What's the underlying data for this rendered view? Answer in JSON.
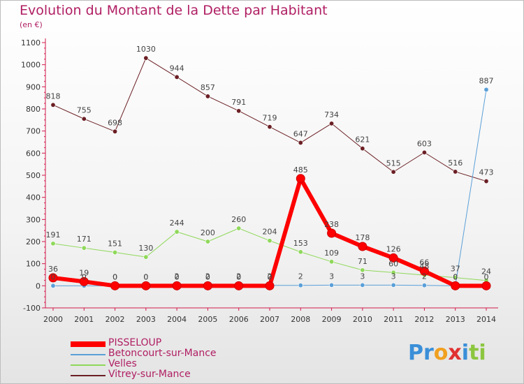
{
  "chart_data": {
    "type": "line",
    "title": "Evolution du Montant de la Dette par Habitant",
    "unit_label": "(en €)",
    "xlabel": "",
    "ylabel": "",
    "ylim": [
      -100,
      1100
    ],
    "yticks": [
      -100,
      0,
      100,
      200,
      300,
      400,
      500,
      600,
      700,
      800,
      900,
      1000,
      1100
    ],
    "x": [
      "2000",
      "2001",
      "2002",
      "2003",
      "2004",
      "2005",
      "2006",
      "2007",
      "2008",
      "2009",
      "2010",
      "2011",
      "2012",
      "2013",
      "2014"
    ],
    "grid": false,
    "legend_position": "bottom-left",
    "series": [
      {
        "name": "Vitrey-sur-Mance",
        "color": "#6b1f24",
        "values": [
          818,
          755,
          698,
          1030,
          944,
          857,
          791,
          719,
          647,
          734,
          621,
          515,
          603,
          516,
          473
        ]
      },
      {
        "name": "Velles",
        "color": "#8fd85a",
        "values": [
          191,
          171,
          151,
          130,
          244,
          200,
          260,
          204,
          153,
          109,
          71,
          60,
          48,
          37,
          24
        ]
      },
      {
        "name": "Betoncourt-sur-Mance",
        "color": "#5a9fd8",
        "values": [
          0,
          0,
          0,
          0,
          2,
          2,
          2,
          2,
          2,
          3,
          3,
          3,
          2,
          0,
          887
        ]
      },
      {
        "name": "PISSELOUP",
        "color": "#ff0000",
        "values": [
          36,
          19,
          0,
          0,
          0,
          0,
          0,
          0,
          485,
          238,
          178,
          126,
          66,
          0,
          0
        ]
      }
    ],
    "legend": [
      "PISSELOUP",
      "Betoncourt-sur-Mance",
      "Velles",
      "Vitrey-sur-Mance"
    ]
  },
  "logo": {
    "text": "Proxiti",
    "letters": [
      "P",
      "r",
      "o",
      "x",
      "i",
      "t",
      "i"
    ],
    "colors": [
      "#3a8fd8",
      "#3a8fd8",
      "#f0a020",
      "#e03030",
      "#3a8fd8",
      "#8cc63f",
      "#8cc63f"
    ]
  }
}
